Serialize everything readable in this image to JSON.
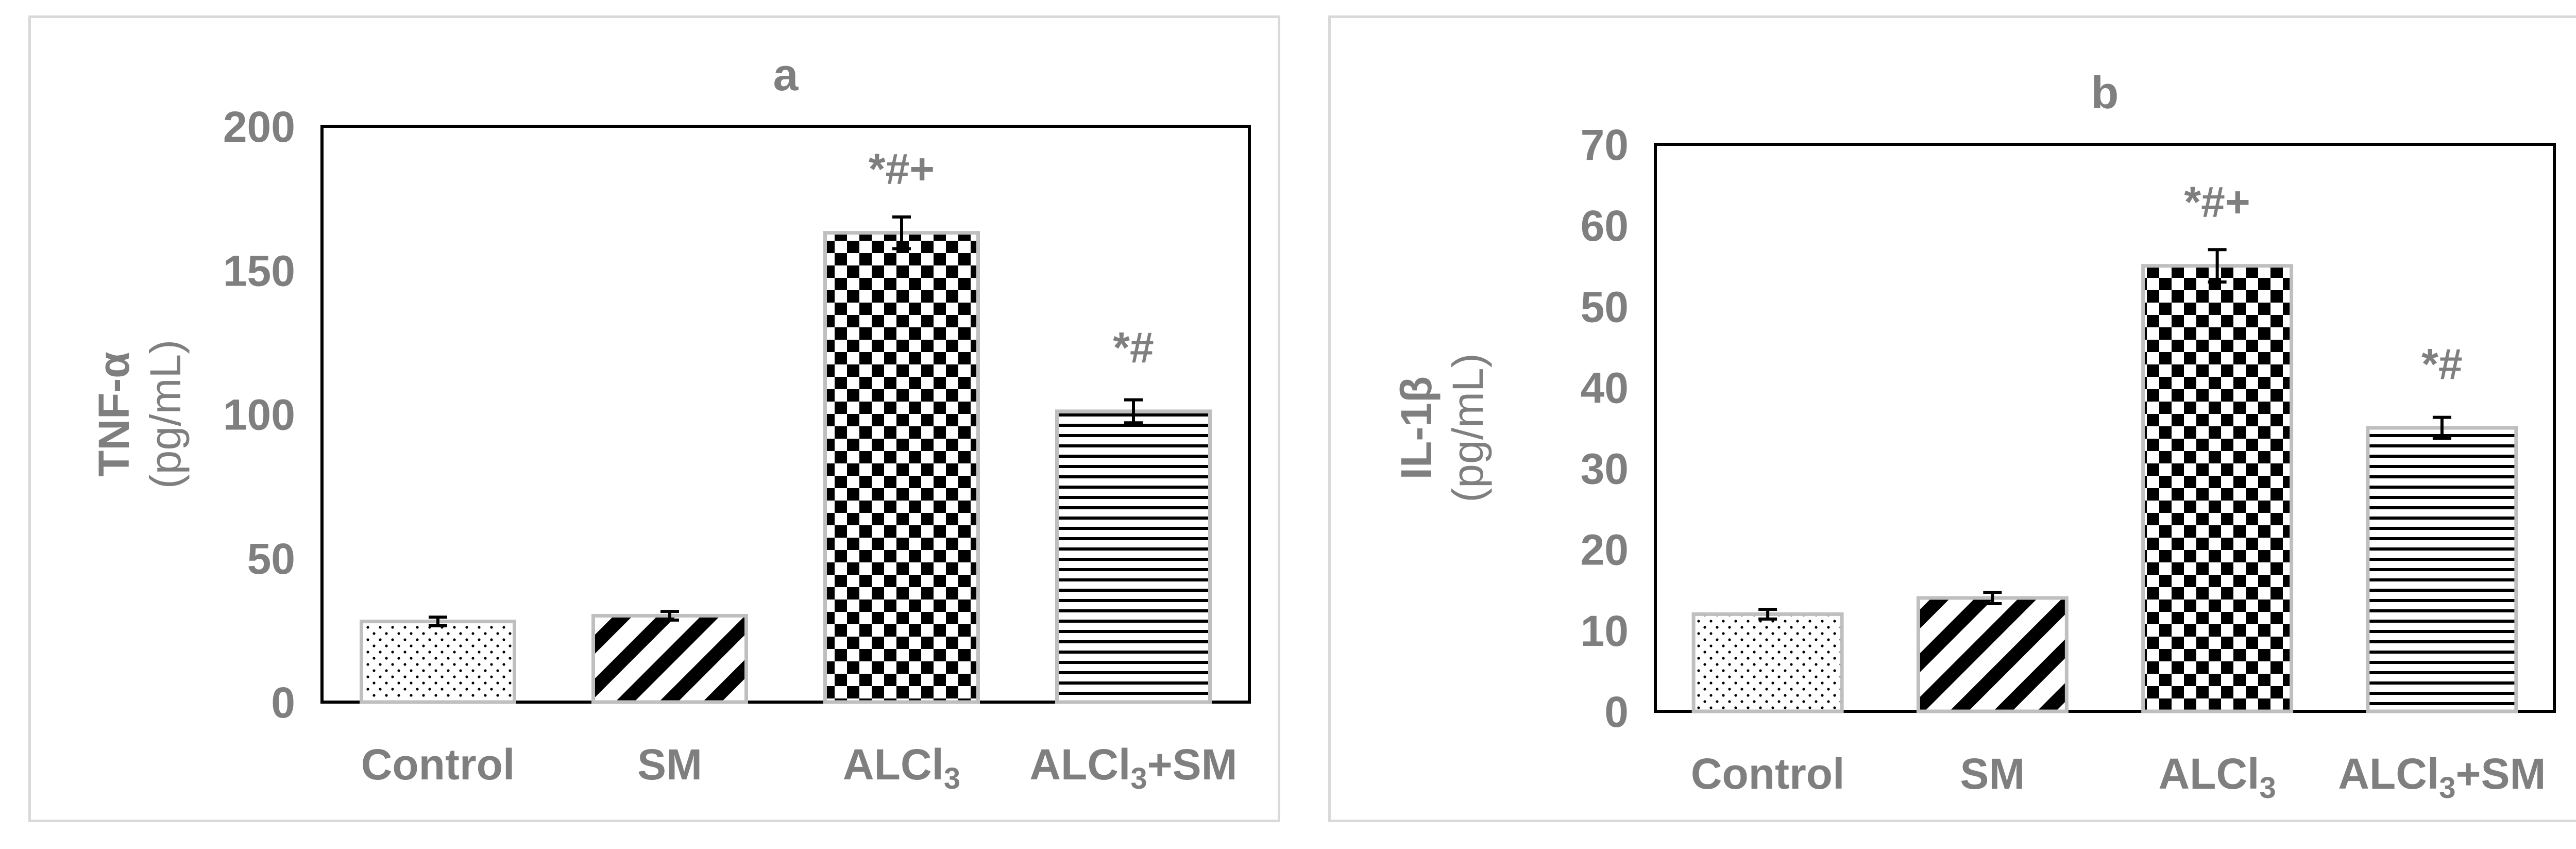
{
  "chart_data": [
    {
      "type": "bar",
      "title": "a",
      "ylabel": "TNF-α",
      "yunit": "(pg/mL)",
      "ylim": [
        0,
        200
      ],
      "yticks": [
        "0",
        "50",
        "100",
        "150",
        "200"
      ],
      "categories": [
        {
          "main": "Control",
          "sub": "",
          "tail": ""
        },
        {
          "main": "SM",
          "sub": "",
          "tail": ""
        },
        {
          "main": "ALCl",
          "sub": "3",
          "tail": ""
        },
        {
          "main": "ALCl",
          "sub": "3",
          "tail": "+SM"
        }
      ],
      "values": [
        28,
        30,
        163,
        101
      ],
      "errors": [
        1.5,
        1.5,
        5.5,
        4
      ],
      "annotations": [
        "",
        "",
        "*#+",
        "*#"
      ],
      "patterns": [
        "dots",
        "diagonal",
        "checker",
        "horizontal"
      ]
    },
    {
      "type": "bar",
      "title": "b",
      "ylabel": "IL-1β",
      "yunit": "(pg/mL)",
      "ylim": [
        0,
        70
      ],
      "yticks": [
        "0",
        "10",
        "20",
        "30",
        "40",
        "50",
        "60",
        "70"
      ],
      "categories": [
        {
          "main": "Control",
          "sub": "",
          "tail": ""
        },
        {
          "main": "SM",
          "sub": "",
          "tail": ""
        },
        {
          "main": "ALCl",
          "sub": "3",
          "tail": ""
        },
        {
          "main": "ALCl",
          "sub": "3",
          "tail": "+SM"
        }
      ],
      "values": [
        12,
        14,
        55,
        35
      ],
      "errors": [
        0.6,
        0.7,
        2,
        1.3
      ],
      "annotations": [
        "",
        "",
        "*#+",
        "*#"
      ],
      "patterns": [
        "dots",
        "diagonal",
        "checker",
        "horizontal"
      ]
    }
  ],
  "colors": {
    "axis": "#000000",
    "text": "#7f7f7f",
    "bar_fill": "#000000",
    "bar_border": "#bfbfbf",
    "frame": "#d9d9d9"
  }
}
